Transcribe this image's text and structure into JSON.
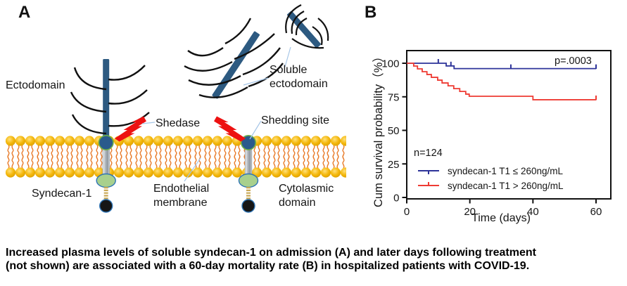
{
  "panel_a": {
    "panel_label": "A",
    "ectodomain_label": "Ectodomain",
    "shedase_label": "Shedase",
    "shedding_site_label": "Shedding site",
    "soluble_line1": "Soluble",
    "soluble_line2": "ectodomain",
    "syndecan_label": "Syndecan-1",
    "membrane_line1": "Endothelial",
    "membrane_line2": "membrane",
    "cytoplasmic_line1": "Cytolasmic",
    "cytoplasmic_line2": "domain",
    "colors": {
      "core_protein": "#2d5a81",
      "lipid_head": "#f2b000",
      "lipid_tail": "#e87a28",
      "intracellular_vesicle": "#a8d08d",
      "lightning": "#ed1111",
      "leader_line": "#a6c6e7"
    }
  },
  "panel_b": {
    "panel_label": "B"
  },
  "chart_data": {
    "type": "line",
    "subtype": "kaplan-meier-step",
    "title": "",
    "xlabel": "Time (days)",
    "ylabel": "Cum survival probability（%）",
    "xlim": [
      0,
      65
    ],
    "ylim": [
      -3,
      110
    ],
    "xticks": [
      0,
      20,
      40,
      60
    ],
    "yticks": [
      0,
      25,
      50,
      75,
      100
    ],
    "grid": false,
    "legend_position": "lower-left-inside",
    "annotations": {
      "p_value": "p=.0003",
      "n": "n=124"
    },
    "legend": [
      {
        "label": "syndecan-1 T1 ≤ 260ng/mL",
        "color": "#2d3399"
      },
      {
        "label": "syndecan-1 T1 > 260ng/mL",
        "color": "#ee3b33"
      }
    ],
    "series": [
      {
        "name": "syndecan-1 T1 ≤ 260ng/mL",
        "color": "#2d3399",
        "steps": [
          [
            0,
            100
          ],
          [
            12.5,
            98
          ],
          [
            15,
            96
          ],
          [
            60,
            96
          ]
        ],
        "censors": [
          [
            10,
            100
          ],
          [
            14,
            98
          ],
          [
            33,
            96
          ],
          [
            60,
            96
          ]
        ]
      },
      {
        "name": "syndecan-1 T1 > 260ng/mL",
        "color": "#ee3b33",
        "steps": [
          [
            0,
            100
          ],
          [
            2.2,
            97.9
          ],
          [
            3.4,
            95.8
          ],
          [
            4.9,
            93.7
          ],
          [
            6.4,
            91.6
          ],
          [
            7.8,
            89.5
          ],
          [
            9.8,
            87.4
          ],
          [
            11.2,
            85.3
          ],
          [
            13.1,
            83.2
          ],
          [
            14.9,
            81.1
          ],
          [
            16.8,
            79.0
          ],
          [
            18.7,
            77.0
          ],
          [
            19.8,
            75.4
          ],
          [
            40,
            72.8
          ],
          [
            60,
            72.8
          ]
        ],
        "censors": [
          [
            60,
            72.8
          ]
        ]
      }
    ]
  },
  "caption": {
    "line1": "Increased plasma levels of soluble syndecan-1 on admission (A) and later days following treatment",
    "line2": "(not shown) are associated with a 60-day mortality rate (B) in hospitalized patients with COVID-19."
  }
}
